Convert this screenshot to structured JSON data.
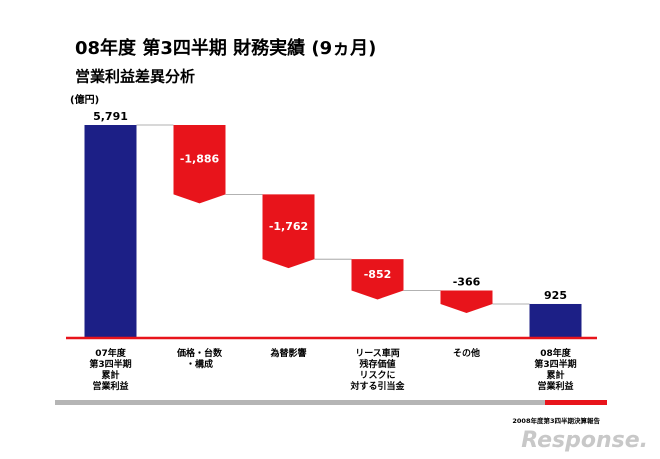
{
  "chart_data": {
    "type": "waterfall",
    "title": "08年度 第3四半期 財務実績 (9ヵ月)",
    "subtitle": "営業利益差異分析",
    "unit_label": "(億円)",
    "categories": [
      "07年度\n第3四半期\n累計\n営業利益",
      "価格・台数\n・構成",
      "為替影響",
      "リース車両\n残存価値\nリスクに\n対する引当金",
      "その他",
      "08年度\n第3四半期\n累計\n営業利益"
    ],
    "values": [
      5791,
      -1886,
      -1762,
      -852,
      -366,
      925
    ],
    "value_labels": [
      "5,791",
      "-1,886",
      "-1,762",
      "-852",
      "-366",
      "925"
    ],
    "is_total": [
      true,
      false,
      false,
      false,
      false,
      true
    ],
    "total_color": "#1c1f86",
    "decrease_color": "#e8141b",
    "footer": "2008年度第3四半期決算報告",
    "watermark": "Response."
  }
}
